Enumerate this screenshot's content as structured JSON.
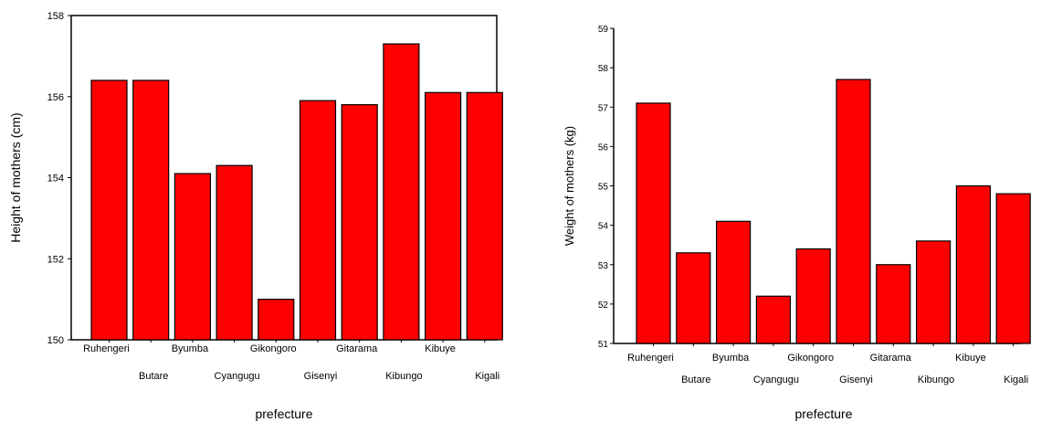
{
  "colors": {
    "bar": "#ff0000",
    "outline": "#000000",
    "background": "#ffffff"
  },
  "chart_data": [
    {
      "type": "bar",
      "categories": [
        "Ruhengeri",
        "Butare",
        "Byumba",
        "Cyangugu",
        "Gikongoro",
        "Gisenyi",
        "Gitarama",
        "Kibungo",
        "Kibuye",
        "Kigali"
      ],
      "values": [
        156.4,
        156.4,
        154.1,
        154.3,
        151.0,
        155.9,
        155.8,
        157.3,
        156.1,
        156.1
      ],
      "title": "",
      "xlabel": "prefecture",
      "ylabel": "Height of mothers (cm)",
      "ylim": [
        150,
        158
      ],
      "yticks": [
        "150",
        "152",
        "154",
        "156",
        "158"
      ],
      "grid": false
    },
    {
      "type": "bar",
      "categories": [
        "Ruhengeri",
        "Butare",
        "Byumba",
        "Cyangugu",
        "Gikongoro",
        "Gisenyi",
        "Gitarama",
        "Kibungo",
        "Kibuye",
        "Kigali"
      ],
      "values": [
        57.1,
        53.3,
        54.1,
        52.2,
        53.4,
        57.7,
        53.0,
        53.6,
        55.0,
        54.8
      ],
      "title": "",
      "xlabel": "prefecture",
      "ylabel": "Weight of mothers (kg)",
      "ylim": [
        51,
        59
      ],
      "yticks": [
        "51",
        "52",
        "53",
        "54",
        "55",
        "56",
        "57",
        "58",
        "59"
      ],
      "grid": false
    }
  ]
}
